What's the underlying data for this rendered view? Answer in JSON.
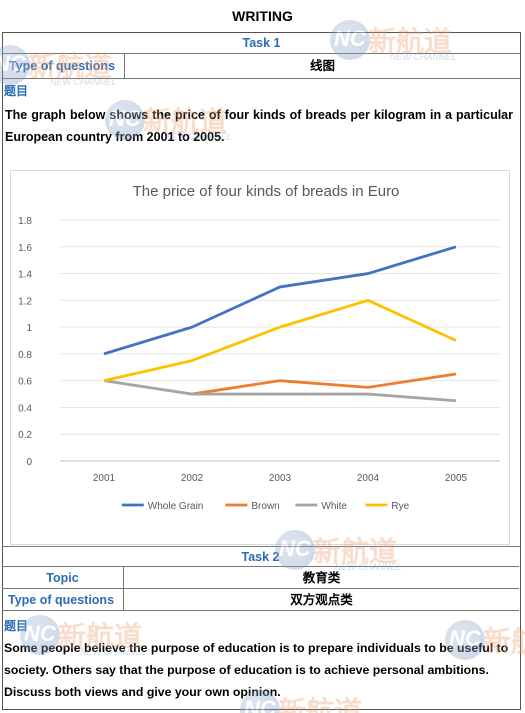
{
  "header": {
    "title": "WRITING"
  },
  "task1": {
    "heading": "Task 1",
    "type_label": "Type of questions",
    "type_value": "线图",
    "question_label": "题目",
    "prompt": "The graph below shows the price of four kinds of breads per kilogram in a particular European country from 2001 to 2005."
  },
  "chart_data": {
    "type": "line",
    "title": "The price of four kinds of breads in Euro",
    "xlabel": "",
    "ylabel": "",
    "categories": [
      "2001",
      "2002",
      "2003",
      "2004",
      "2005"
    ],
    "ylim": [
      0,
      1.8
    ],
    "yticks": [
      "0",
      "0.2",
      "0.4",
      "0.6",
      "0.8",
      "1",
      "1.2",
      "1.4",
      "1.6",
      "1.8"
    ],
    "grid": true,
    "legend_position": "bottom",
    "series": [
      {
        "name": "Whole Grain",
        "color": "#4472c4",
        "values": [
          0.8,
          1.0,
          1.3,
          1.4,
          1.6
        ]
      },
      {
        "name": "Brown",
        "color": "#ed7d31",
        "values": [
          null,
          0.5,
          0.6,
          0.55,
          0.65
        ]
      },
      {
        "name": "White",
        "color": "#a5a5a5",
        "values": [
          0.6,
          0.5,
          0.5,
          0.5,
          0.45
        ]
      },
      {
        "name": "Rye",
        "color": "#ffc000",
        "values": [
          0.6,
          0.75,
          1.0,
          1.2,
          0.9
        ]
      }
    ]
  },
  "task2": {
    "heading": "Task 2",
    "topic_label": "Topic",
    "topic_value": "教育类",
    "type_label": "Type of questions",
    "type_value": "双方观点类",
    "question_label": "题目",
    "prompt": "Some people believe the purpose of education is to prepare individuals to be useful to society. Others say that the purpose of education is to achieve personal ambitions. Discuss both views and give your own opinion."
  },
  "watermark": {
    "cn": "新航道",
    "en": "NEW CHANNEL",
    "mark": "NC"
  }
}
